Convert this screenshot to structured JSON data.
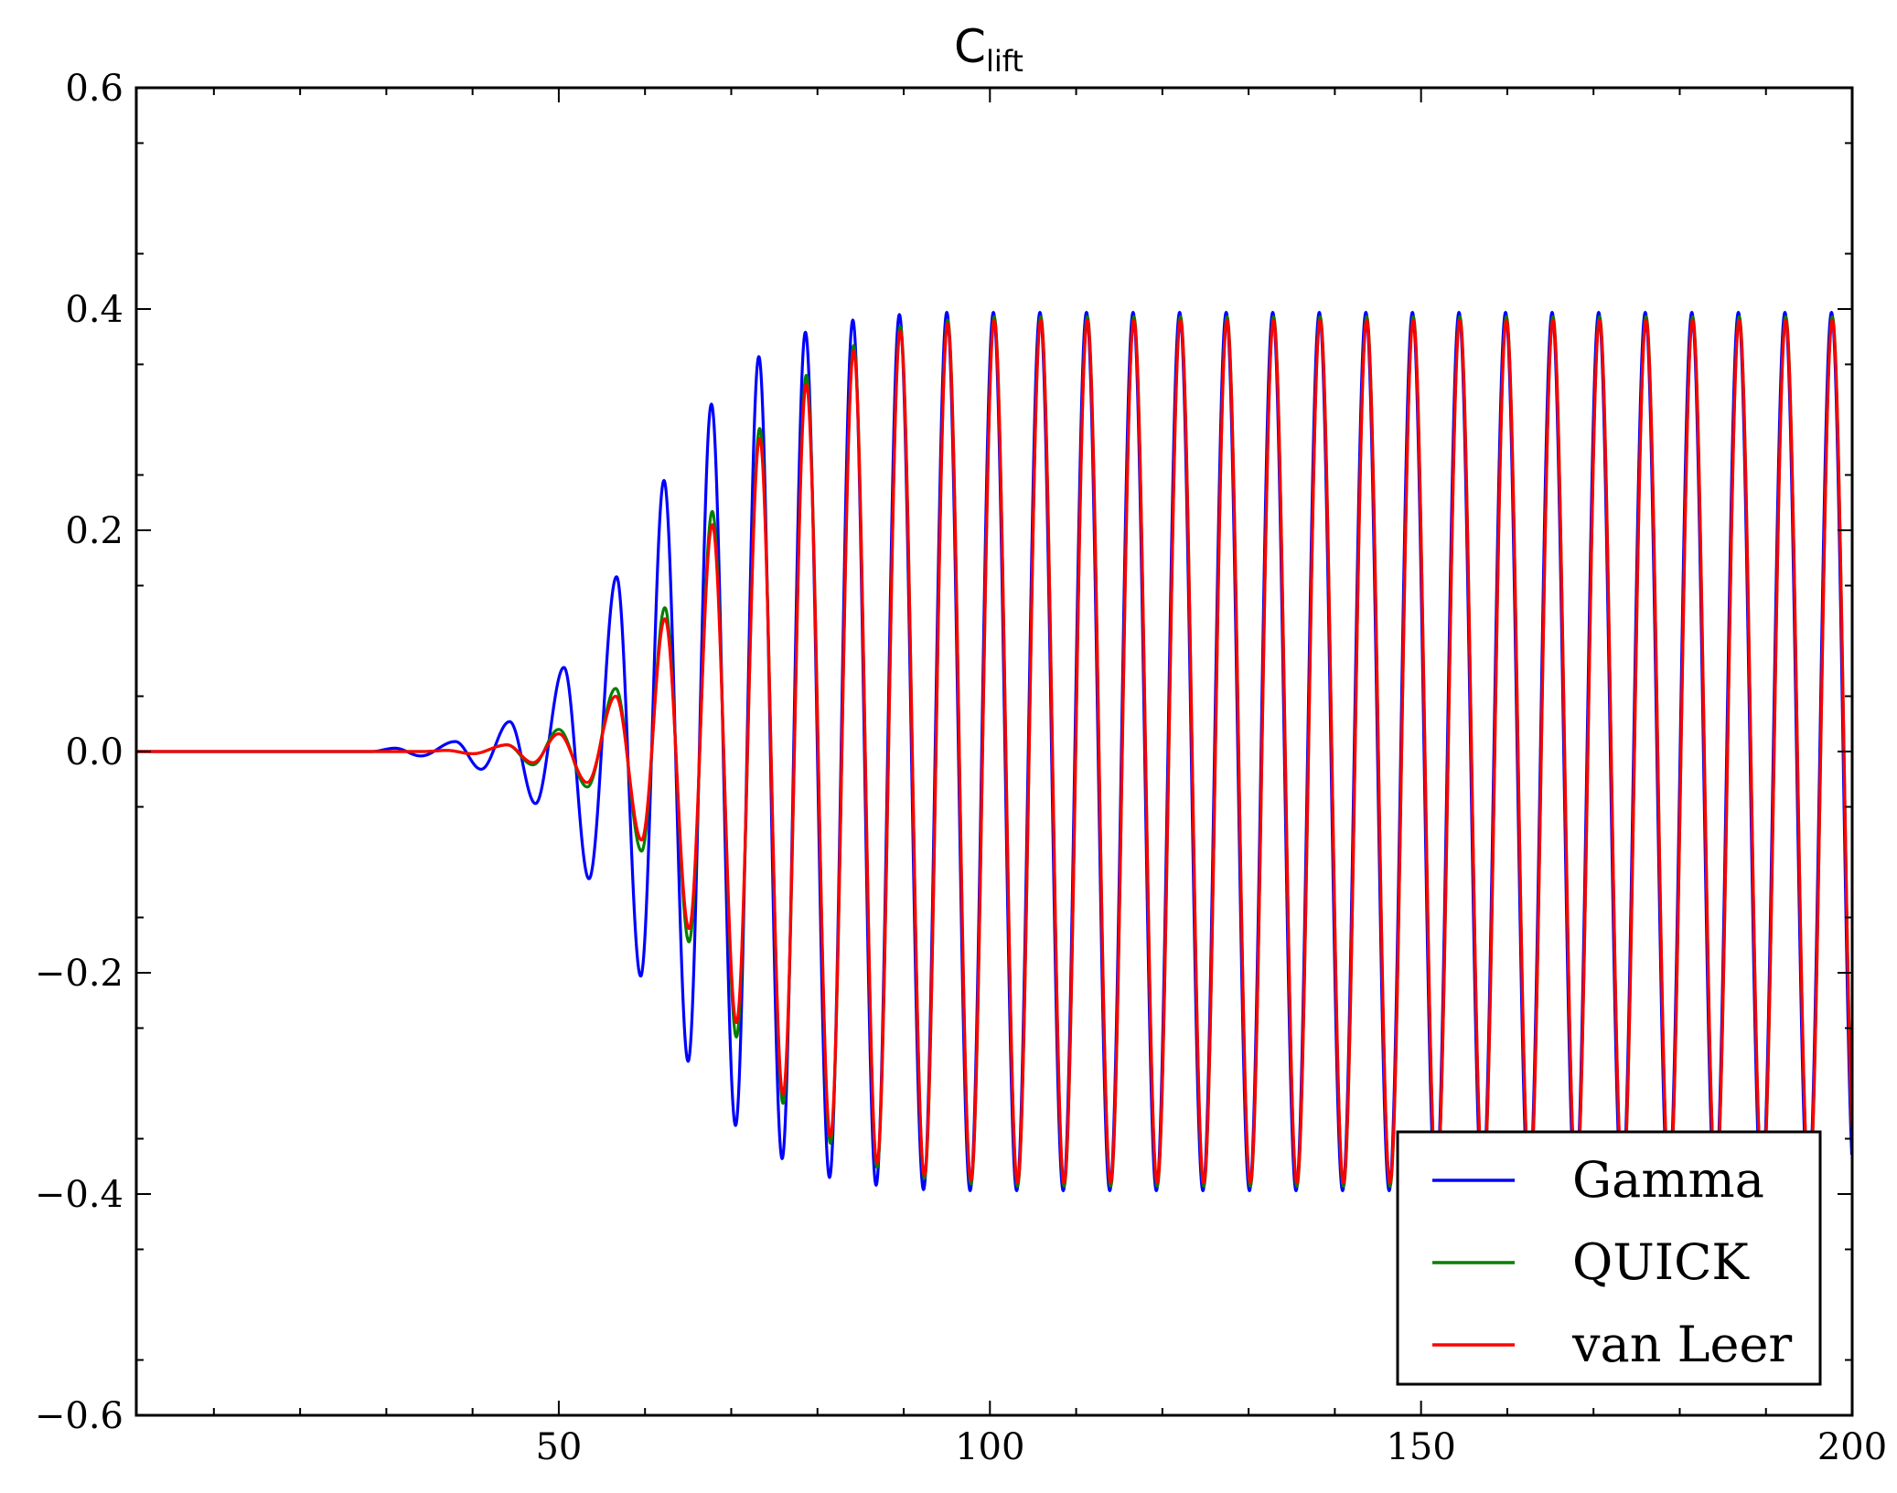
{
  "chart_data": {
    "type": "line",
    "title": "C",
    "title_subscript": "lift",
    "xlabel": "",
    "ylabel": "",
    "xlim": [
      1,
      200
    ],
    "ylim": [
      -0.6,
      0.6
    ],
    "x_ticks": [
      50,
      100,
      150,
      200
    ],
    "x_tick_labels": [
      "50",
      "100",
      "150",
      "200"
    ],
    "y_ticks": [
      -0.6,
      -0.4,
      -0.2,
      0.0,
      0.2,
      0.4,
      0.6
    ],
    "y_tick_labels": [
      "−0.6",
      "−0.4",
      "−0.2",
      "0.0",
      "0.2",
      "0.4",
      "0.6"
    ],
    "grid": false,
    "legend_position": "lower-right",
    "oscillation_period": 5.4,
    "series": [
      {
        "name": "Gamma",
        "color": "#0000ff",
        "peak_x": [
          31,
          38,
          44.3,
          50.6,
          56.7,
          62.2,
          67.7,
          73.2,
          78.6,
          84.1,
          89.5,
          95
        ],
        "peak_y": [
          0.003,
          0.009,
          0.027,
          0.076,
          0.158,
          0.245,
          0.314,
          0.357,
          0.379,
          0.39,
          0.395,
          0.397
        ],
        "trough_x": [
          34,
          41,
          47.3,
          53.5,
          59.5,
          65,
          70.5,
          75.9,
          81.4,
          86.8,
          92.3
        ],
        "trough_y": [
          -0.004,
          -0.016,
          -0.047,
          -0.115,
          -0.203,
          -0.28,
          -0.338,
          -0.368,
          -0.385,
          -0.392,
          -0.396
        ],
        "steady_amplitude": 0.397
      },
      {
        "name": "QUICK",
        "color": "#008000",
        "peak_x": [
          37,
          44,
          50,
          56.6,
          62.3,
          67.8,
          73.3,
          78.7,
          84.2,
          89.6,
          95.1,
          100.5
        ],
        "peak_y": [
          0.001,
          0.006,
          0.02,
          0.057,
          0.13,
          0.217,
          0.292,
          0.34,
          0.367,
          0.384,
          0.39,
          0.393
        ],
        "trough_x": [
          40,
          47,
          53.3,
          59.6,
          65.1,
          70.6,
          76,
          81.5,
          86.9,
          92.4,
          97.8
        ],
        "trough_y": [
          -0.002,
          -0.012,
          -0.032,
          -0.09,
          -0.172,
          -0.258,
          -0.318,
          -0.354,
          -0.376,
          -0.386,
          -0.391
        ],
        "steady_amplitude": 0.393
      },
      {
        "name": "van Leer",
        "color": "#ff0000",
        "peak_x": [
          37,
          44,
          50,
          56.6,
          62.3,
          67.8,
          73.3,
          78.7,
          84.2,
          89.6,
          95.1,
          100.5
        ],
        "peak_y": [
          0.001,
          0.006,
          0.016,
          0.05,
          0.12,
          0.205,
          0.283,
          0.332,
          0.362,
          0.38,
          0.387,
          0.39
        ],
        "trough_x": [
          40,
          47,
          53.3,
          59.6,
          65.1,
          70.6,
          76,
          81.5,
          86.9,
          92.4,
          97.8
        ],
        "trough_y": [
          -0.002,
          -0.01,
          -0.028,
          -0.08,
          -0.16,
          -0.245,
          -0.31,
          -0.348,
          -0.372,
          -0.383,
          -0.388
        ],
        "steady_amplitude": 0.39
      }
    ]
  }
}
